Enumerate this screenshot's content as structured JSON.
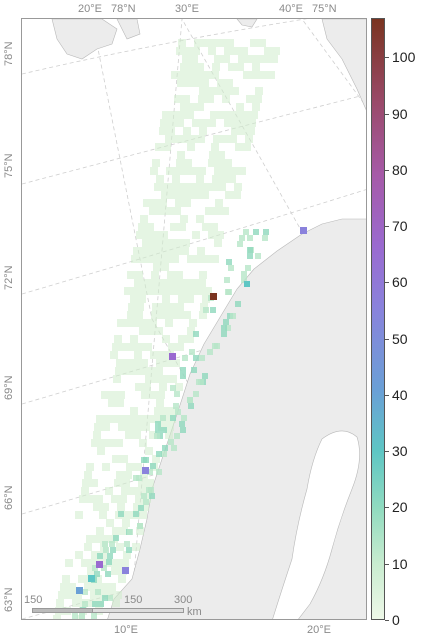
{
  "map": {
    "top_labels": [
      "20°E",
      "78°N",
      "30°E",
      "40°E",
      "75°N"
    ],
    "left_labels": [
      "78°N",
      "75°N",
      "72°N",
      "69°N",
      "66°N",
      "63°N"
    ],
    "bottom_labels": [
      "10°E",
      "20°E"
    ],
    "scale_bar": {
      "labels": [
        "150",
        "150",
        "300",
        "km"
      ]
    }
  },
  "colorbar": {
    "ticks": [
      "100",
      "90",
      "80",
      "70",
      "60",
      "50",
      "40",
      "30",
      "20",
      "10",
      "0"
    ],
    "range": [
      0,
      107
    ],
    "colors": {
      "low": "#eef8e8",
      "mid": "#8a82dc",
      "high": "#7a3420"
    }
  },
  "colors": {
    "land": "#ececec",
    "coast_line": "#b0b0b0",
    "grid": "#c8c8c8",
    "cell_low": "#e2f3dd"
  }
}
